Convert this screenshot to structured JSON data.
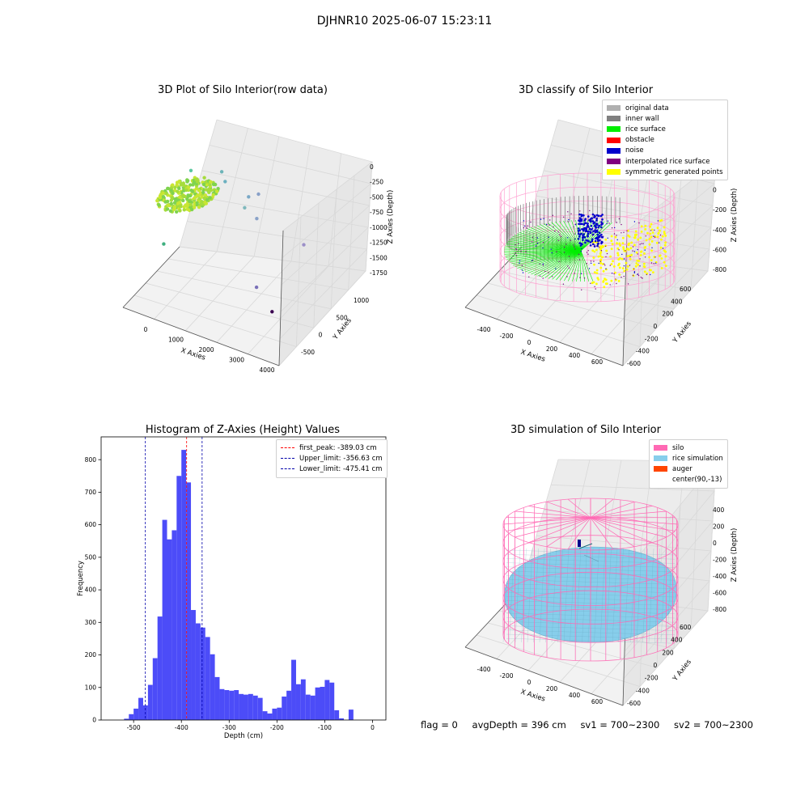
{
  "suptitle": "DJHNR10 2025-06-07 15:23:11",
  "footer": {
    "flag": "flag = 0",
    "avg_depth": "avgDepth = 396 cm",
    "sv1": "sv1 = 700~2300",
    "sv2": "sv2 = 700~2300"
  },
  "chart_data": [
    {
      "type": "scatter",
      "title": "3D Plot of Silo Interior(row data)",
      "xlabel": "X Axies",
      "ylabel": "Y Axies",
      "zlabel": "Z Axies (Depth)",
      "x_ticks": [
        "0",
        "1000",
        "2000",
        "3000",
        "4000"
      ],
      "y_ticks": [
        "-500",
        "0",
        "500",
        "1000"
      ],
      "z_ticks": [
        "0",
        "-250",
        "-500",
        "-750",
        "-1000",
        "-1250",
        "-1500",
        "-1750"
      ],
      "points": [
        {
          "x": 450,
          "y": 700,
          "z": -1000
        },
        {
          "x": 1150,
          "y": 950,
          "z": -1000
        },
        {
          "x": 1250,
          "y": 950,
          "z": -1100
        },
        {
          "x": 1900,
          "y": 1000,
          "z": -1200
        },
        {
          "x": 2150,
          "y": 1050,
          "z": -1150
        },
        {
          "x": 1950,
          "y": 800,
          "z": -1250
        },
        {
          "x": 2350,
          "y": 750,
          "z": -1300
        },
        {
          "x": 3650,
          "y": 850,
          "z": -1450
        },
        {
          "x": 400,
          "y": -200,
          "z": -1550
        },
        {
          "x": 3050,
          "y": -100,
          "z": -1700
        },
        {
          "x": 3800,
          "y": -450,
          "z": -1750
        }
      ]
    },
    {
      "type": "scatter",
      "title": "3D classify of Silo Interior",
      "xlabel": "X Axies",
      "ylabel": "Y Axies",
      "zlabel": "Z Axies (Depth)",
      "x_ticks": [
        "-400",
        "-200",
        "0",
        "200",
        "400",
        "600"
      ],
      "y_ticks": [
        "-600",
        "-400",
        "-200",
        "0",
        "200",
        "400",
        "600"
      ],
      "z_ticks": [
        "200",
        "0",
        "-200",
        "-400",
        "-600",
        "-800"
      ],
      "legend": [
        {
          "label": "original data",
          "color": "#b0b0b0"
        },
        {
          "label": "inner wall",
          "color": "#808080"
        },
        {
          "label": "rice surface",
          "color": "#00ee00"
        },
        {
          "label": "obstacle",
          "color": "#ff0000"
        },
        {
          "label": "noise",
          "color": "#0000cc"
        },
        {
          "label": "interpolated rice surface",
          "color": "#800080"
        },
        {
          "label": "symmetric generated points",
          "color": "#ffff00"
        }
      ],
      "silo_color": "#ff9ccf"
    },
    {
      "type": "bar",
      "title": "Histogram of Z-Axies (Height) Values",
      "xlabel": "Depth (cm)",
      "ylabel": "Frequency",
      "bin_start": -520,
      "bin_width": 10,
      "values": [
        4,
        18,
        35,
        68,
        45,
        108,
        190,
        318,
        615,
        555,
        583,
        750,
        830,
        730,
        338,
        297,
        284,
        255,
        202,
        132,
        95,
        92,
        90,
        92,
        80,
        78,
        80,
        75,
        68,
        27,
        20,
        35,
        38,
        72,
        90,
        185,
        110,
        125,
        78,
        75,
        100,
        102,
        123,
        115,
        30,
        5,
        0,
        32
      ],
      "xlim": [
        -568,
        28
      ],
      "ylim": [
        0,
        870
      ],
      "x_ticks": [
        -500,
        -400,
        -300,
        -200,
        -100,
        0
      ],
      "y_ticks": [
        0,
        100,
        200,
        300,
        400,
        500,
        600,
        700,
        800
      ],
      "bar_color": "#4c4cf8",
      "vlines": [
        {
          "label": "first_peak: -389.03 cm",
          "x": -389.03,
          "color": "#ff0000"
        },
        {
          "label": "Upper_limit: -356.63 cm",
          "x": -356.63,
          "color": "#0000aa"
        },
        {
          "label": "Lower_limit: -475.41 cm",
          "x": -475.41,
          "color": "#0000aa"
        }
      ]
    },
    {
      "type": "scatter",
      "title": "3D simulation of Silo Interior",
      "xlabel": "X Axies",
      "ylabel": "Y Axies",
      "zlabel": "Z Axies (Depth)",
      "x_ticks": [
        "-400",
        "-200",
        "0",
        "200",
        "400",
        "600"
      ],
      "y_ticks": [
        "-600",
        "-400",
        "-200",
        "0",
        "200",
        "400",
        "600"
      ],
      "z_ticks": [
        "400",
        "200",
        "0",
        "-200",
        "-400",
        "-600",
        "-800"
      ],
      "legend": [
        {
          "label": "silo",
          "color": "#ff69b4"
        },
        {
          "label": "rice simulation",
          "color": "#87ceeb"
        },
        {
          "label": "auger",
          "color": "#ff4500"
        },
        {
          "label": "center(90,-13)",
          "color": ""
        }
      ]
    }
  ]
}
